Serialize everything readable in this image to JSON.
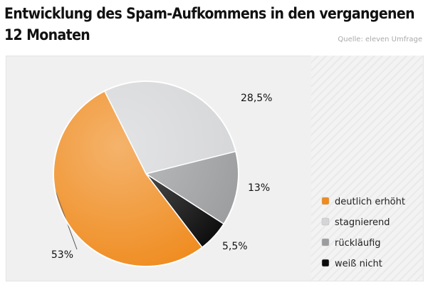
{
  "title": "Entwicklung des Spam-Aufkommens in den vergangenen 12 Monaten",
  "source": "Quelle: eleven Umfrage",
  "chart_data": {
    "type": "pie",
    "title": "Entwicklung des Spam-Aufkommens in den vergangenen 12 Monaten",
    "legend_position": "right",
    "slices": [
      {
        "name": "stagnierend",
        "value": 28.5,
        "label": "28,5%",
        "color": "#d4d5d7"
      },
      {
        "name": "rückläufig",
        "value": 13,
        "label": "13%",
        "color": "#9a9c9e"
      },
      {
        "name": "weiß nicht",
        "value": 5.5,
        "label": "5,5%",
        "color": "#0a0a0a"
      },
      {
        "name": "deutlich erhöht",
        "value": 53,
        "label": "53%",
        "color": "#ef8a1c"
      }
    ]
  }
}
